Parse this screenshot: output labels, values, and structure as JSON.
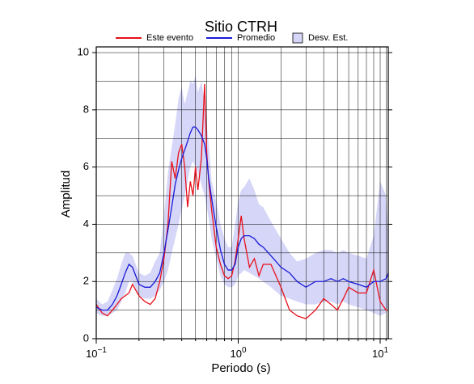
{
  "chart_data": {
    "type": "line",
    "title": "Sitio CTRH",
    "xlabel": "Periodo (s)",
    "ylabel": "Amplitud",
    "xscale": "log",
    "grid": true,
    "xlim": [
      0.1,
      11.4
    ],
    "ylim": [
      0,
      10.2
    ],
    "xticks": [
      {
        "value": 0.1,
        "label": "10",
        "exponent": "−1"
      },
      {
        "value": 1,
        "label": "10",
        "exponent": "0"
      },
      {
        "value": 10,
        "label": "10",
        "exponent": "1"
      }
    ],
    "xminor": [
      0.2,
      0.3,
      0.4,
      0.5,
      0.6,
      0.7,
      0.8,
      0.9,
      2,
      3,
      4,
      5,
      6,
      7,
      8,
      9,
      11
    ],
    "yticks": [
      0,
      2,
      4,
      6,
      8,
      10
    ],
    "yminor": [
      1,
      3,
      5,
      7,
      9
    ],
    "x": [
      0.1,
      0.11,
      0.12,
      0.13,
      0.14,
      0.15,
      0.16,
      0.17,
      0.18,
      0.2,
      0.22,
      0.24,
      0.26,
      0.28,
      0.3,
      0.32,
      0.34,
      0.36,
      0.38,
      0.4,
      0.42,
      0.44,
      0.46,
      0.48,
      0.5,
      0.52,
      0.55,
      0.58,
      0.6,
      0.62,
      0.65,
      0.7,
      0.75,
      0.8,
      0.85,
      0.9,
      0.95,
      1.0,
      1.05,
      1.1,
      1.2,
      1.3,
      1.4,
      1.5,
      1.7,
      2.0,
      2.3,
      2.6,
      3.0,
      3.5,
      4.0,
      4.5,
      5.0,
      5.5,
      6.0,
      7.0,
      8.0,
      9.0,
      10.0,
      11.0,
      11.4
    ],
    "series": [
      {
        "name": "Desv. Est.",
        "color": "#d6d6f8",
        "kind": "band",
        "lower": [
          0.9,
          0.8,
          0.8,
          0.9,
          1.0,
          1.3,
          1.6,
          2.0,
          2.0,
          1.5,
          1.4,
          1.4,
          1.5,
          1.7,
          2.0,
          2.4,
          3.0,
          3.5,
          4.0,
          4.5,
          5.0,
          5.5,
          6.0,
          6.2,
          6.0,
          5.8,
          5.4,
          5.0,
          4.6,
          4.2,
          3.5,
          2.8,
          2.2,
          1.9,
          1.8,
          1.8,
          1.9,
          2.2,
          2.3,
          2.4,
          2.3,
          2.2,
          2.1,
          2.0,
          1.8,
          1.5,
          1.4,
          1.3,
          1.2,
          1.2,
          1.3,
          1.3,
          1.2,
          1.3,
          1.2,
          1.1,
          1.0,
          0.9,
          0.8,
          0.9,
          1.1
        ],
        "upper": [
          1.4,
          1.2,
          1.3,
          1.7,
          2.1,
          2.6,
          3.0,
          3.0,
          2.9,
          2.3,
          2.2,
          2.3,
          2.7,
          3.0,
          4.3,
          5.8,
          6.7,
          7.5,
          8.4,
          8.8,
          8.2,
          8.6,
          9.0,
          8.9,
          9.2,
          8.6,
          9.0,
          8.3,
          7.5,
          6.8,
          5.5,
          4.8,
          4.0,
          3.5,
          3.2,
          3.2,
          4.0,
          4.8,
          5.2,
          5.3,
          5.6,
          5.2,
          4.7,
          4.6,
          4.1,
          3.5,
          3.0,
          2.7,
          2.8,
          3.0,
          3.1,
          3.1,
          3.0,
          3.1,
          3.0,
          2.9,
          2.8,
          3.6,
          5.5,
          5.0,
          3.5
        ]
      },
      {
        "name": "Este evento",
        "color": "#e8101a",
        "values": [
          1.2,
          0.9,
          0.8,
          1.0,
          1.2,
          1.4,
          1.5,
          1.6,
          1.9,
          1.5,
          1.3,
          1.2,
          1.4,
          2.0,
          2.8,
          4.0,
          6.2,
          5.6,
          6.5,
          6.8,
          6.0,
          4.6,
          5.5,
          5.0,
          6.0,
          5.2,
          6.3,
          8.9,
          6.5,
          5.5,
          4.5,
          3.2,
          2.6,
          2.2,
          2.1,
          2.2,
          2.7,
          3.5,
          4.3,
          3.5,
          2.5,
          2.8,
          2.2,
          2.6,
          2.6,
          1.8,
          1.0,
          0.8,
          0.7,
          1.0,
          1.4,
          1.2,
          1.0,
          1.4,
          1.8,
          1.6,
          1.6,
          2.4,
          1.3,
          1.0,
          1.0
        ]
      },
      {
        "name": "Promedio",
        "color": "#1a1ad8",
        "values": [
          1.1,
          1.0,
          1.0,
          1.2,
          1.5,
          1.9,
          2.3,
          2.6,
          2.5,
          1.9,
          1.8,
          1.8,
          2.0,
          2.3,
          3.0,
          3.8,
          4.6,
          5.4,
          5.9,
          6.3,
          6.6,
          6.9,
          7.2,
          7.4,
          7.4,
          7.3,
          7.1,
          6.8,
          6.3,
          5.6,
          4.9,
          3.9,
          3.1,
          2.6,
          2.4,
          2.4,
          2.6,
          3.2,
          3.5,
          3.6,
          3.6,
          3.5,
          3.3,
          3.2,
          2.9,
          2.5,
          2.3,
          2.0,
          1.8,
          2.0,
          2.0,
          2.1,
          2.0,
          2.1,
          2.0,
          1.9,
          1.8,
          2.0,
          2.0,
          2.1,
          2.3
        ]
      }
    ]
  }
}
